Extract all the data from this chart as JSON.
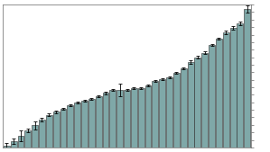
{
  "title": "",
  "bar_color": "#7fa8a8",
  "bar_edge_color": "#2a2a2a",
  "background_color": "#ffffff",
  "n_bars": 35,
  "values": [
    0.5,
    2.0,
    3.8,
    5.5,
    7.2,
    9.0,
    10.5,
    11.5,
    12.5,
    13.5,
    14.5,
    15.0,
    15.5,
    16.5,
    17.5,
    18.5,
    18.5,
    18.5,
    19.0,
    19.0,
    20.0,
    21.5,
    22.0,
    22.5,
    24.0,
    25.5,
    27.5,
    29.0,
    30.5,
    33.0,
    35.0,
    37.0,
    38.5,
    40.0,
    44.5
  ],
  "errors": [
    0.9,
    1.0,
    1.8,
    0.7,
    1.3,
    0.5,
    0.4,
    0.4,
    0.3,
    0.3,
    0.3,
    0.3,
    0.3,
    0.3,
    0.3,
    0.3,
    2.0,
    0.3,
    0.3,
    0.3,
    0.3,
    0.3,
    0.3,
    0.3,
    0.3,
    0.3,
    0.5,
    0.4,
    0.4,
    0.4,
    0.4,
    0.5,
    0.5,
    0.5,
    1.2
  ],
  "ylim": [
    0,
    46
  ],
  "right_ticks": true,
  "n_yticks": 20,
  "tick_color": "#666666",
  "spine_color": "#666666"
}
